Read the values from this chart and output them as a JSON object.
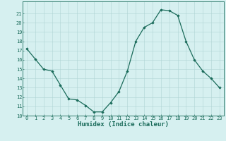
{
  "x": [
    0,
    1,
    2,
    3,
    4,
    5,
    6,
    7,
    8,
    9,
    10,
    11,
    12,
    13,
    14,
    15,
    16,
    17,
    18,
    19,
    20,
    21,
    22,
    23
  ],
  "y": [
    17.2,
    16.1,
    15.0,
    14.8,
    13.3,
    11.8,
    11.7,
    11.1,
    10.4,
    10.4,
    11.4,
    12.6,
    14.8,
    18.0,
    19.5,
    20.0,
    21.4,
    21.3,
    20.8,
    18.0,
    16.0,
    14.8,
    14.0,
    13.0
  ],
  "ylim": [
    10,
    22
  ],
  "yticks": [
    10,
    11,
    12,
    13,
    14,
    15,
    16,
    17,
    18,
    19,
    20,
    21
  ],
  "xticks": [
    0,
    1,
    2,
    3,
    4,
    5,
    6,
    7,
    8,
    9,
    10,
    11,
    12,
    13,
    14,
    15,
    16,
    17,
    18,
    19,
    20,
    21,
    22,
    23
  ],
  "xlabel": "Humidex (Indice chaleur)",
  "line_color": "#1a6b5a",
  "marker": "D",
  "marker_size": 1.8,
  "bg_color": "#d6f0f0",
  "grid_color": "#afd4d4",
  "tick_label_fontsize": 5.0,
  "xlabel_fontsize": 6.5,
  "xlabel_fontweight": "bold",
  "linewidth": 0.9
}
